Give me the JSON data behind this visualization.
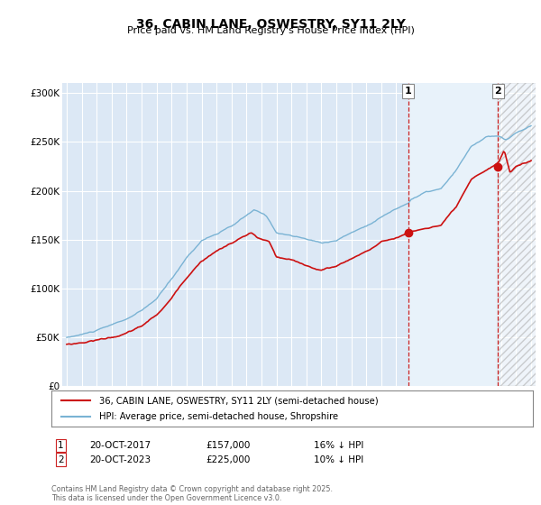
{
  "title": "36, CABIN LANE, OSWESTRY, SY11 2LY",
  "subtitle": "Price paid vs. HM Land Registry's House Price Index (HPI)",
  "ylim": [
    0,
    310000
  ],
  "yticks": [
    0,
    50000,
    100000,
    150000,
    200000,
    250000,
    300000
  ],
  "ytick_labels": [
    "£0",
    "£50K",
    "£100K",
    "£150K",
    "£200K",
    "£250K",
    "£300K"
  ],
  "xstart": 1995,
  "xend": 2026,
  "legend_line1": "36, CABIN LANE, OSWESTRY, SY11 2LY (semi-detached house)",
  "legend_line2": "HPI: Average price, semi-detached house, Shropshire",
  "ann1": {
    "num": "1",
    "date": "20-OCT-2017",
    "price": "£157,000",
    "pct": "16% ↓ HPI",
    "year": 2017.8,
    "price_val": 157000
  },
  "ann2": {
    "num": "2",
    "date": "20-OCT-2023",
    "price": "£225,000",
    "pct": "10% ↓ HPI",
    "year": 2023.8,
    "price_val": 225000
  },
  "footer": "Contains HM Land Registry data © Crown copyright and database right 2025.\nThis data is licensed under the Open Government Licence v3.0.",
  "hpi_color": "#7ab3d4",
  "price_color": "#cc1111",
  "vline_color": "#cc2222",
  "bg_color": "#dce8f5",
  "shade_color": "#e8f2fa",
  "grid_color": "#ffffff"
}
